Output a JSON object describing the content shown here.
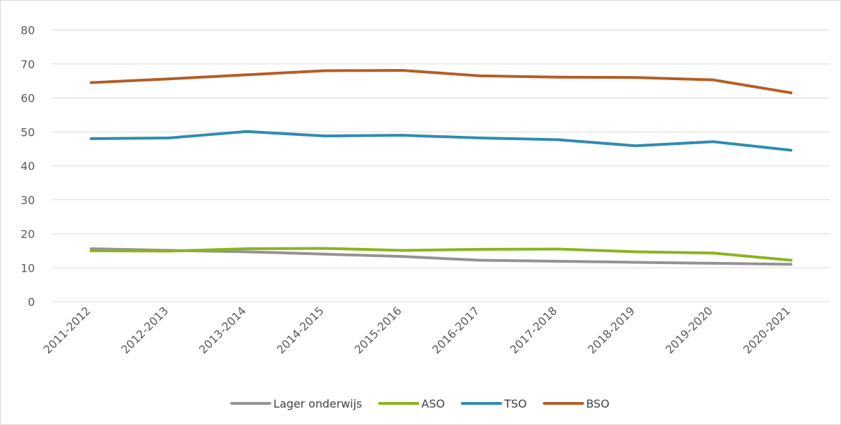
{
  "chart_data": {
    "type": "line",
    "title": "",
    "xlabel": "",
    "ylabel": "",
    "categories": [
      "2011-2012",
      "2012-2013",
      "2013-2014",
      "2014-2015",
      "2015-2016",
      "2016-2017",
      "2017-2018",
      "2018-2019",
      "2019-2020",
      "2020-2021"
    ],
    "ylim": [
      0,
      80
    ],
    "yticks": [
      "0",
      "10",
      "20",
      "30",
      "40",
      "50",
      "60",
      "70",
      "80"
    ],
    "grid": "horizontal",
    "legend_position": "bottom",
    "series": [
      {
        "name": "Lager onderwijs",
        "color": "#939393",
        "values": [
          15.6,
          15.1,
          14.7,
          14.0,
          13.3,
          12.2,
          11.9,
          11.6,
          11.3,
          11.0
        ]
      },
      {
        "name": "ASO",
        "color": "#8bb31d",
        "values": [
          15.0,
          14.9,
          15.6,
          15.7,
          15.1,
          15.4,
          15.5,
          14.7,
          14.3,
          12.2
        ]
      },
      {
        "name": "TSO",
        "color": "#2f8cb0",
        "values": [
          48.0,
          48.2,
          50.1,
          48.8,
          49.0,
          48.2,
          47.7,
          45.9,
          47.1,
          44.6
        ]
      },
      {
        "name": "BSO",
        "color": "#b45d26",
        "values": [
          64.5,
          65.6,
          66.8,
          68.0,
          68.1,
          66.5,
          66.1,
          66.0,
          65.3,
          61.5
        ]
      }
    ]
  }
}
